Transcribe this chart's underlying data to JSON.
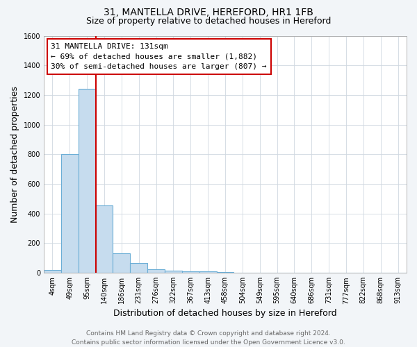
{
  "title": "31, MANTELLA DRIVE, HEREFORD, HR1 1FB",
  "subtitle": "Size of property relative to detached houses in Hereford",
  "xlabel": "Distribution of detached houses by size in Hereford",
  "ylabel": "Number of detached properties",
  "bar_labels": [
    "4sqm",
    "49sqm",
    "95sqm",
    "140sqm",
    "186sqm",
    "231sqm",
    "276sqm",
    "322sqm",
    "367sqm",
    "413sqm",
    "458sqm",
    "504sqm",
    "549sqm",
    "595sqm",
    "640sqm",
    "686sqm",
    "731sqm",
    "777sqm",
    "822sqm",
    "868sqm",
    "913sqm"
  ],
  "bar_heights": [
    20,
    800,
    1240,
    455,
    130,
    65,
    25,
    15,
    12,
    8,
    5,
    0,
    0,
    0,
    0,
    0,
    0,
    0,
    0,
    0,
    0
  ],
  "bar_color": "#c6dcee",
  "bar_edge_color": "#6baed6",
  "vline_color": "#cc0000",
  "ylim": [
    0,
    1600
  ],
  "yticks": [
    0,
    200,
    400,
    600,
    800,
    1000,
    1200,
    1400,
    1600
  ],
  "annotation_title": "31 MANTELLA DRIVE: 131sqm",
  "annotation_line1": "← 69% of detached houses are smaller (1,882)",
  "annotation_line2": "30% of semi-detached houses are larger (807) →",
  "footer_line1": "Contains HM Land Registry data © Crown copyright and database right 2024.",
  "footer_line2": "Contains public sector information licensed under the Open Government Licence v3.0.",
  "bg_color": "#f2f5f8",
  "plot_bg_color": "#ffffff",
  "grid_color": "#d0d8e0",
  "title_fontsize": 10,
  "subtitle_fontsize": 9,
  "axis_label_fontsize": 9,
  "tick_fontsize": 7,
  "footer_fontsize": 6.5,
  "ann_fontsize": 8
}
